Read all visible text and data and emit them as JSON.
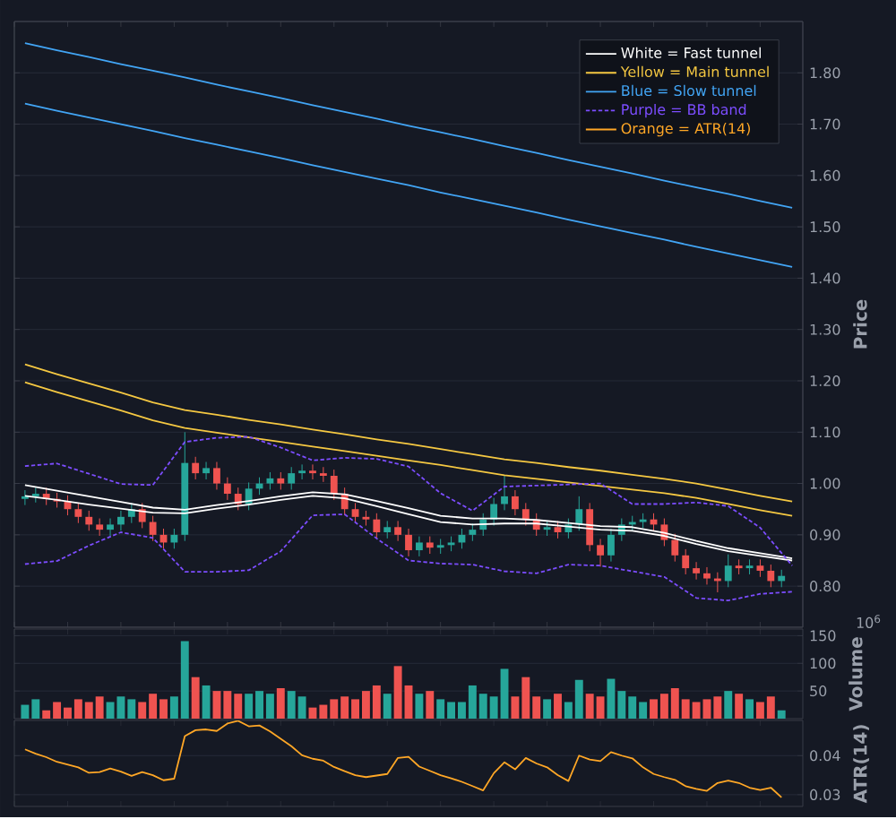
{
  "chart_data": [
    {
      "type": "candlestick",
      "ylabel": "Price",
      "ylim": [
        0.72,
        1.9
      ],
      "yticks": [
        {
          "value": 0.8,
          "label": "0.80"
        },
        {
          "value": 0.9,
          "label": "0.90"
        },
        {
          "value": 1.0,
          "label": "1.00"
        },
        {
          "value": 1.1,
          "label": "1.10"
        },
        {
          "value": 1.2,
          "label": "1.20"
        },
        {
          "value": 1.3,
          "label": "1.30"
        },
        {
          "value": 1.4,
          "label": "1.40"
        },
        {
          "value": 1.5,
          "label": "1.50"
        },
        {
          "value": 1.6,
          "label": "1.60"
        },
        {
          "value": 1.7,
          "label": "1.70"
        },
        {
          "value": 1.8,
          "label": "1.80"
        }
      ],
      "grid": "y",
      "tick_labels": "y",
      "categories": [
        null,
        null,
        null,
        null,
        null,
        null,
        null,
        null,
        null,
        null,
        null,
        null,
        null,
        null,
        null,
        null,
        null,
        null,
        null,
        null,
        null,
        null,
        null,
        null,
        null,
        null,
        null,
        null,
        null,
        null,
        null,
        null,
        null,
        null,
        null,
        null,
        null,
        null,
        null,
        null,
        null,
        null,
        null,
        null,
        null,
        null,
        null,
        null,
        null,
        null,
        null,
        null,
        null,
        null,
        null,
        null,
        null,
        null,
        null,
        null,
        null,
        null,
        null,
        null,
        null,
        null,
        null,
        null,
        null,
        null,
        null,
        null
      ],
      "colors": [
        "#26a69a",
        "#26a69a",
        "#ef5350",
        "#ef5350",
        "#ef5350",
        "#ef5350",
        "#ef5350",
        "#ef5350",
        "#26a69a",
        "#26a69a",
        "#26a69a",
        "#ef5350",
        "#ef5350",
        "#ef5350",
        "#26a69a",
        "#26a69a",
        "#ef5350",
        "#26a69a",
        "#ef5350",
        "#ef5350",
        "#ef5350",
        "#26a69a",
        "#26a69a",
        "#26a69a",
        "#ef5350",
        "#26a69a",
        "#26a69a",
        "#ef5350",
        "#ef5350",
        "#ef5350",
        "#ef5350",
        "#ef5350",
        "#ef5350",
        "#ef5350",
        "#26a69a",
        "#ef5350",
        "#ef5350",
        "#26a69a",
        "#ef5350",
        "#26a69a",
        "#26a69a",
        "#26a69a",
        "#26a69a",
        "#26a69a",
        "#26a69a",
        "#26a69a",
        "#ef5350",
        "#ef5350",
        "#ef5350",
        "#26a69a",
        "#ef5350",
        "#26a69a",
        "#26a69a",
        "#ef5350",
        "#ef5350",
        "#26a69a",
        "#26a69a",
        "#26a69a",
        "#26a69a",
        "#ef5350",
        "#ef5350",
        "#ef5350",
        "#ef5350",
        "#ef5350",
        "#ef5350",
        "#ef5350",
        "#26a69a",
        "#ef5350",
        "#26a69a",
        "#ef5350",
        "#ef5350",
        "#26a69a"
      ],
      "ohlc": [
        [
          0.97,
          0.987,
          0.958,
          0.975
        ],
        [
          0.975,
          0.992,
          0.963,
          0.98
        ],
        [
          0.98,
          0.992,
          0.958,
          0.97
        ],
        [
          0.97,
          0.982,
          0.953,
          0.965
        ],
        [
          0.965,
          0.977,
          0.938,
          0.95
        ],
        [
          0.95,
          0.962,
          0.923,
          0.935
        ],
        [
          0.935,
          0.947,
          0.908,
          0.92
        ],
        [
          0.92,
          0.932,
          0.898,
          0.91
        ],
        [
          0.91,
          0.932,
          0.898,
          0.92
        ],
        [
          0.92,
          0.947,
          0.908,
          0.935
        ],
        [
          0.935,
          0.962,
          0.923,
          0.95
        ],
        [
          0.95,
          0.962,
          0.913,
          0.925
        ],
        [
          0.925,
          0.937,
          0.888,
          0.9
        ],
        [
          0.9,
          0.912,
          0.873,
          0.885
        ],
        [
          0.885,
          0.912,
          0.873,
          0.9
        ],
        [
          0.9,
          1.1,
          0.888,
          1.04
        ],
        [
          1.04,
          1.052,
          1.008,
          1.02
        ],
        [
          1.02,
          1.042,
          1.008,
          1.03
        ],
        [
          1.03,
          1.042,
          0.988,
          1.0
        ],
        [
          1.0,
          1.012,
          0.968,
          0.98
        ],
        [
          0.98,
          0.992,
          0.948,
          0.96
        ],
        [
          0.96,
          1.002,
          0.948,
          0.99
        ],
        [
          0.99,
          1.012,
          0.978,
          1.0
        ],
        [
          1.0,
          1.022,
          0.988,
          1.01
        ],
        [
          1.01,
          1.022,
          0.988,
          1.0
        ],
        [
          1.0,
          1.032,
          0.988,
          1.02
        ],
        [
          1.02,
          1.037,
          1.008,
          1.025
        ],
        [
          1.025,
          1.037,
          1.008,
          1.02
        ],
        [
          1.02,
          1.032,
          1.003,
          1.015
        ],
        [
          1.015,
          1.027,
          0.968,
          0.98
        ],
        [
          0.98,
          0.992,
          0.938,
          0.95
        ],
        [
          0.95,
          0.962,
          0.923,
          0.935
        ],
        [
          0.935,
          0.947,
          0.918,
          0.93
        ],
        [
          0.93,
          0.942,
          0.893,
          0.905
        ],
        [
          0.905,
          0.927,
          0.893,
          0.915
        ],
        [
          0.915,
          0.927,
          0.888,
          0.9
        ],
        [
          0.9,
          0.912,
          0.858,
          0.87
        ],
        [
          0.87,
          0.897,
          0.858,
          0.885
        ],
        [
          0.885,
          0.897,
          0.863,
          0.875
        ],
        [
          0.875,
          0.892,
          0.863,
          0.88
        ],
        [
          0.88,
          0.897,
          0.868,
          0.885
        ],
        [
          0.885,
          0.912,
          0.873,
          0.9
        ],
        [
          0.9,
          0.922,
          0.888,
          0.91
        ],
        [
          0.91,
          0.942,
          0.898,
          0.93
        ],
        [
          0.93,
          0.972,
          0.918,
          0.96
        ],
        [
          0.96,
          1.015,
          0.948,
          0.975
        ],
        [
          0.975,
          0.987,
          0.938,
          0.95
        ],
        [
          0.95,
          0.962,
          0.918,
          0.93
        ],
        [
          0.93,
          0.942,
          0.898,
          0.91
        ],
        [
          0.91,
          0.927,
          0.898,
          0.915
        ],
        [
          0.915,
          0.927,
          0.893,
          0.905
        ],
        [
          0.905,
          0.932,
          0.893,
          0.92
        ],
        [
          0.92,
          0.975,
          0.908,
          0.95
        ],
        [
          0.95,
          0.962,
          0.868,
          0.88
        ],
        [
          0.88,
          0.892,
          0.838,
          0.86
        ],
        [
          0.86,
          0.912,
          0.848,
          0.9
        ],
        [
          0.9,
          0.932,
          0.888,
          0.92
        ],
        [
          0.92,
          0.937,
          0.908,
          0.925
        ],
        [
          0.925,
          0.942,
          0.913,
          0.93
        ],
        [
          0.93,
          0.942,
          0.908,
          0.92
        ],
        [
          0.92,
          0.932,
          0.878,
          0.89
        ],
        [
          0.89,
          0.902,
          0.848,
          0.86
        ],
        [
          0.86,
          0.872,
          0.823,
          0.835
        ],
        [
          0.835,
          0.847,
          0.813,
          0.825
        ],
        [
          0.825,
          0.837,
          0.803,
          0.815
        ],
        [
          0.815,
          0.827,
          0.788,
          0.81
        ],
        [
          0.81,
          0.862,
          0.798,
          0.84
        ],
        [
          0.84,
          0.852,
          0.823,
          0.835
        ],
        [
          0.835,
          0.852,
          0.823,
          0.84
        ],
        [
          0.84,
          0.852,
          0.818,
          0.83
        ],
        [
          0.83,
          0.842,
          0.798,
          0.81
        ],
        [
          0.81,
          0.832,
          0.798,
          0.82
        ]
      ]
    },
    {
      "type": "line",
      "ylim": [
        0.72,
        1.9
      ],
      "yticks": [
        0.8,
        0.9,
        1.0,
        1.1,
        1.2,
        1.3,
        1.4,
        1.5,
        1.6,
        1.7,
        1.8
      ],
      "tick_labels": false,
      "legend": "top right",
      "categories": [
        null,
        null,
        null,
        null,
        null,
        null,
        null,
        null,
        null,
        null,
        null,
        null,
        null,
        null,
        null,
        null,
        null,
        null,
        null,
        null,
        null,
        null,
        null,
        null,
        null
      ],
      "series": [
        {
          "name": "White = Fast tunnel",
          "color": "#ffffff",
          "values": [
            0.997,
            0.986,
            0.975,
            0.964,
            0.953,
            0.949,
            0.958,
            0.966,
            0.975,
            0.983,
            0.979,
            0.966,
            0.952,
            0.937,
            0.932,
            0.932,
            0.929,
            0.923,
            0.917,
            0.915,
            0.904,
            0.888,
            0.874,
            0.864,
            0.854
          ]
        },
        {
          "color": "#ffffff",
          "values": [
            0.976,
            0.968,
            0.959,
            0.951,
            0.943,
            0.942,
            0.951,
            0.959,
            0.968,
            0.976,
            0.971,
            0.956,
            0.94,
            0.925,
            0.92,
            0.922,
            0.922,
            0.916,
            0.91,
            0.908,
            0.898,
            0.882,
            0.868,
            0.859,
            0.85
          ]
        },
        {
          "name": "Yellow = Main tunnel",
          "color": "#f5c842",
          "values": [
            1.232,
            1.213,
            1.195,
            1.177,
            1.158,
            1.143,
            1.134,
            1.124,
            1.115,
            1.105,
            1.096,
            1.086,
            1.077,
            1.067,
            1.057,
            1.047,
            1.04,
            1.032,
            1.025,
            1.017,
            1.009,
            1.0,
            0.988,
            0.976,
            0.965
          ]
        },
        {
          "color": "#f5c842",
          "values": [
            1.197,
            1.178,
            1.16,
            1.142,
            1.123,
            1.108,
            1.099,
            1.09,
            1.081,
            1.072,
            1.063,
            1.054,
            1.045,
            1.036,
            1.026,
            1.016,
            1.009,
            1.002,
            0.995,
            0.988,
            0.981,
            0.972,
            0.96,
            0.948,
            0.937
          ]
        },
        {
          "name": "Blue = Slow tunnel",
          "color": "#42a5f5",
          "values": [
            1.858,
            1.844,
            1.831,
            1.817,
            1.804,
            1.791,
            1.777,
            1.764,
            1.751,
            1.737,
            1.724,
            1.711,
            1.697,
            1.684,
            1.671,
            1.657,
            1.644,
            1.63,
            1.617,
            1.604,
            1.59,
            1.577,
            1.564,
            1.55,
            1.537
          ]
        },
        {
          "color": "#42a5f5",
          "values": [
            1.74,
            1.726,
            1.713,
            1.7,
            1.687,
            1.673,
            1.66,
            1.647,
            1.634,
            1.62,
            1.607,
            1.594,
            1.581,
            1.567,
            1.554,
            1.541,
            1.528,
            1.514,
            1.501,
            1.488,
            1.475,
            1.461,
            1.448,
            1.435,
            1.422
          ]
        },
        {
          "name": "Purple = BB band",
          "color": "#7c4dff",
          "line_style": "dashed",
          "values": [
            1.034,
            1.039,
            1.019,
            0.999,
            0.997,
            1.081,
            1.089,
            1.091,
            1.07,
            1.045,
            1.05,
            1.048,
            1.033,
            0.981,
            0.947,
            0.994,
            0.996,
            0.998,
            1.0,
            0.96,
            0.96,
            0.963,
            0.956,
            0.914,
            0.84
          ]
        },
        {
          "color": "#7c4dff",
          "line_style": "dashed",
          "values": [
            0.843,
            0.849,
            0.879,
            0.905,
            0.894,
            0.828,
            0.828,
            0.831,
            0.868,
            0.938,
            0.94,
            0.893,
            0.85,
            0.844,
            0.842,
            0.829,
            0.825,
            0.842,
            0.84,
            0.829,
            0.818,
            0.777,
            0.772,
            0.785,
            0.789
          ]
        }
      ]
    },
    {
      "type": "bar",
      "ylabel": "Volume",
      "annotations": [
        "10$^{6}$"
      ],
      "ylim": [
        0,
        162
      ],
      "yticks": [
        50,
        100,
        150
      ],
      "grid": "y",
      "tick_labels": "y",
      "categories": [
        null,
        null,
        null,
        null,
        null,
        null,
        null,
        null,
        null,
        null,
        null,
        null,
        null,
        null,
        null,
        null,
        null,
        null,
        null,
        null,
        null,
        null,
        null,
        null,
        null,
        null,
        null,
        null,
        null,
        null,
        null,
        null,
        null,
        null,
        null,
        null,
        null,
        null,
        null,
        null,
        null,
        null,
        null,
        null,
        null,
        null,
        null,
        null,
        null,
        null,
        null,
        null,
        null,
        null,
        null,
        null,
        null,
        null,
        null,
        null,
        null,
        null,
        null,
        null,
        null,
        null,
        null,
        null,
        null,
        null,
        null,
        null
      ],
      "values": [
        25,
        35,
        15,
        30,
        20,
        35,
        30,
        40,
        30,
        40,
        35,
        30,
        45,
        35,
        40,
        140,
        75,
        60,
        50,
        50,
        45,
        45,
        50,
        45,
        55,
        50,
        40,
        20,
        25,
        35,
        40,
        35,
        50,
        60,
        45,
        95,
        60,
        45,
        50,
        35,
        30,
        30,
        60,
        45,
        40,
        90,
        40,
        75,
        40,
        35,
        45,
        30,
        70,
        45,
        40,
        72,
        50,
        40,
        30,
        35,
        45,
        55,
        35,
        30,
        35,
        40,
        50,
        45,
        35,
        30,
        40,
        15
      ],
      "colors": [
        "#26a69a",
        "#26a69a",
        "#ef5350",
        "#ef5350",
        "#ef5350",
        "#ef5350",
        "#ef5350",
        "#ef5350",
        "#26a69a",
        "#26a69a",
        "#26a69a",
        "#ef5350",
        "#ef5350",
        "#ef5350",
        "#26a69a",
        "#26a69a",
        "#ef5350",
        "#26a69a",
        "#ef5350",
        "#ef5350",
        "#ef5350",
        "#26a69a",
        "#26a69a",
        "#26a69a",
        "#ef5350",
        "#26a69a",
        "#26a69a",
        "#ef5350",
        "#ef5350",
        "#ef5350",
        "#ef5350",
        "#ef5350",
        "#ef5350",
        "#ef5350",
        "#26a69a",
        "#ef5350",
        "#ef5350",
        "#26a69a",
        "#ef5350",
        "#26a69a",
        "#26a69a",
        "#26a69a",
        "#26a69a",
        "#26a69a",
        "#26a69a",
        "#26a69a",
        "#ef5350",
        "#ef5350",
        "#ef5350",
        "#26a69a",
        "#ef5350",
        "#26a69a",
        "#26a69a",
        "#ef5350",
        "#ef5350",
        "#26a69a",
        "#26a69a",
        "#26a69a",
        "#26a69a",
        "#ef5350",
        "#ef5350",
        "#ef5350",
        "#ef5350",
        "#ef5350",
        "#ef5350",
        "#ef5350",
        "#26a69a",
        "#ef5350",
        "#26a69a",
        "#ef5350",
        "#ef5350",
        "#26a69a"
      ]
    },
    {
      "type": "line",
      "ylabel": "ATR(14)",
      "ylim": [
        0.027,
        0.049
      ],
      "yticks": [
        0.03,
        0.04
      ],
      "grid": "y",
      "tick_labels": "y",
      "categories": [
        null,
        null,
        null,
        null,
        null,
        null,
        null,
        null,
        null,
        null,
        null,
        null,
        null,
        null,
        null,
        null,
        null,
        null,
        null,
        null,
        null,
        null,
        null,
        null,
        null,
        null,
        null,
        null,
        null,
        null,
        null,
        null,
        null,
        null,
        null,
        null,
        null,
        null,
        null,
        null,
        null,
        null,
        null,
        null,
        null,
        null,
        null,
        null,
        null,
        null,
        null,
        null,
        null,
        null,
        null,
        null,
        null,
        null,
        null,
        null,
        null,
        null,
        null,
        null,
        null,
        null,
        null,
        null,
        null,
        null,
        null,
        null
      ],
      "series": [
        {
          "name": "Orange = ATR(14)",
          "color": "#ffa726",
          "values": [
            0.0416,
            0.0405,
            0.0396,
            0.0384,
            0.0377,
            0.037,
            0.0356,
            0.0358,
            0.0367,
            0.0359,
            0.0348,
            0.0358,
            0.035,
            0.0337,
            0.0341,
            0.045,
            0.0465,
            0.0467,
            0.0463,
            0.0482,
            0.0489,
            0.0475,
            0.0477,
            0.0462,
            0.0443,
            0.0424,
            0.0401,
            0.0392,
            0.0387,
            0.0371,
            0.036,
            0.035,
            0.0345,
            0.0349,
            0.0353,
            0.0394,
            0.0397,
            0.0372,
            0.0361,
            0.035,
            0.0342,
            0.0333,
            0.0322,
            0.0311,
            0.0355,
            0.0383,
            0.0365,
            0.0394,
            0.038,
            0.037,
            0.035,
            0.0335,
            0.04,
            0.039,
            0.0386,
            0.0409,
            0.04,
            0.0393,
            0.037,
            0.0353,
            0.0345,
            0.0338,
            0.0322,
            0.0315,
            0.031,
            0.033,
            0.0336,
            0.033,
            0.0318,
            0.0312,
            0.0318,
            0.0293
          ]
        }
      ]
    }
  ]
}
